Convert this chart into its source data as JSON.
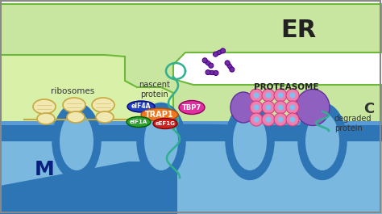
{
  "bg_color": "#ffffff",
  "er_color": "#c8e6a0",
  "er_border_color": "#6db83a",
  "cyto_color": "#d8f0a8",
  "mito_outer_color": "#5b9bd5",
  "mito_dark_color": "#2e75b6",
  "mito_inner_color": "#7ab8e0",
  "ribosome_color": "#f0e8b0",
  "ribosome_border": "#c8a840",
  "trap1_color": "#f07820",
  "eif4a_color": "#2040c0",
  "eif1a_color": "#30a030",
  "eef1g_color": "#d02020",
  "tbp7_color": "#e030a0",
  "proteasome_pink": "#f080b0",
  "proteasome_blue": "#80c0f0",
  "proteasome_purple_cap": "#9060d0",
  "nascent_color": "#30b090",
  "purple_frag_color": "#7030a0",
  "text_dark": "#222222",
  "labels": {
    "ER": "ER",
    "C": "C",
    "M": "M",
    "ribosomes": "ribosomes",
    "nascent_protein": "nascent\nprotein",
    "proteasome": "PROTEASOME",
    "degraded_protein": "degraded\nprotein",
    "trap1": "TRAP1",
    "eif4a": "eIF4A",
    "eif1a": "eIF1A",
    "eef1g": "eEF1G",
    "tbp7": "TBP7"
  },
  "figsize": [
    4.74,
    2.65
  ],
  "dpi": 100
}
